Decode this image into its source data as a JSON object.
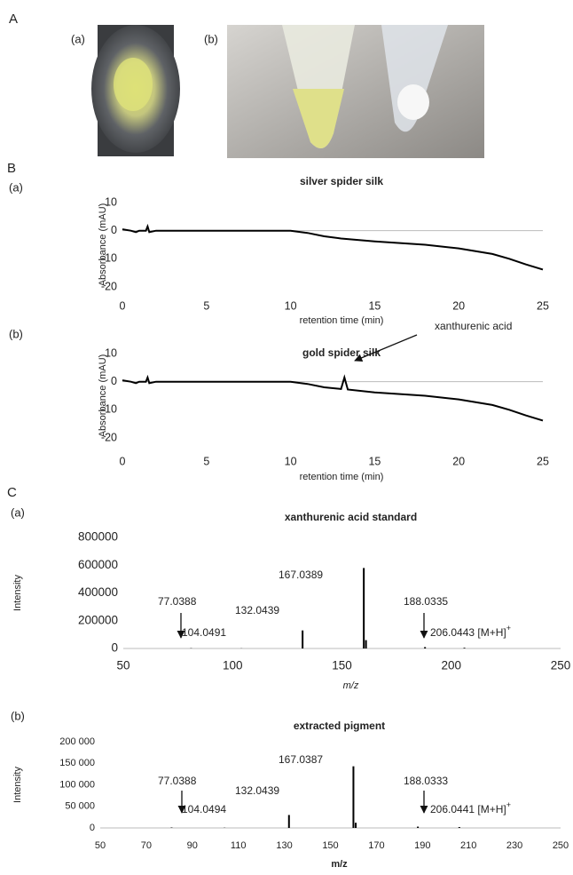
{
  "panel_labels": [
    "A",
    "(a)",
    "(b)",
    "B",
    "(a)",
    "(b)",
    "C",
    "(a)",
    "(b)"
  ],
  "chart_data": [
    {
      "type": "line",
      "title": "silver spider silk",
      "y_label": "Absorbance (mAU)",
      "x_label": "retention time (min)",
      "x": [
        0,
        0.5,
        0.8,
        1.0,
        1.4,
        1.5,
        1.6,
        2,
        5,
        10,
        11,
        12,
        13,
        15,
        18,
        20,
        22,
        23,
        24,
        25
      ],
      "y": [
        0.5,
        0,
        -0.5,
        0,
        0,
        1.5,
        -0.5,
        0,
        0,
        0,
        -0.8,
        -2,
        -2.8,
        -3.8,
        -5,
        -6.3,
        -8.3,
        -10,
        -12,
        -13.8
      ],
      "color": "#000000",
      "xlim": [
        0,
        25
      ],
      "ylim": [
        -20,
        10
      ],
      "xticks": [
        0,
        5,
        10,
        15,
        20,
        25
      ],
      "yticks": [
        -20,
        -10,
        0,
        10
      ],
      "grid": false
    },
    {
      "type": "line",
      "title": "gold spider silk",
      "y_label": "Absorbance (mAU)",
      "x_label": "retention time (min)",
      "x": [
        0,
        0.5,
        0.8,
        1.0,
        1.4,
        1.5,
        1.6,
        2,
        5,
        10,
        11,
        12,
        13,
        13.2,
        13.4,
        15,
        18,
        20,
        22,
        23,
        24,
        25
      ],
      "y": [
        0.5,
        0,
        -0.5,
        0,
        0,
        1.5,
        -0.5,
        0,
        0,
        0,
        -0.8,
        -2,
        -2.6,
        1.5,
        -2.8,
        -3.8,
        -5,
        -6.3,
        -8.3,
        -10,
        -12,
        -13.8
      ],
      "color": "#000000",
      "xlim": [
        0,
        25
      ],
      "ylim": [
        -20,
        10
      ],
      "xticks": [
        0,
        5,
        10,
        15,
        20,
        25
      ],
      "yticks": [
        -20,
        -10,
        0,
        10
      ],
      "grid": false,
      "annotations": [
        {
          "text": "xanthurenic acid"
        }
      ]
    },
    {
      "type": "stem",
      "title": "xanthurenic acid standard",
      "y_label": "Intensity",
      "x_label": "m/z",
      "x": [
        81,
        104,
        132,
        160,
        161,
        188,
        206
      ],
      "values": [
        2000,
        1000,
        130000,
        580000,
        60000,
        10000,
        5000
      ],
      "color": "#000000",
      "xlim": [
        50,
        250
      ],
      "ylim": [
        0,
        800000
      ],
      "xticks": [
        50,
        100,
        150,
        200,
        250
      ],
      "yticks": [
        0,
        200000,
        400000,
        600000,
        800000
      ],
      "grid": false,
      "annotations": [
        {
          "text": "167.0389"
        },
        {
          "text": "132.0439"
        },
        {
          "text": "104.0491"
        },
        {
          "text": "77.0388"
        },
        {
          "text": "188.0335"
        },
        {
          "text": "206.0443 [M+H]",
          "sup": "+"
        }
      ]
    },
    {
      "type": "stem",
      "title": "extracted pigment",
      "y_label": "Intensity",
      "x_label": "m/z",
      "x": [
        81,
        104,
        132,
        160,
        161,
        188,
        206
      ],
      "values": [
        1000,
        500,
        30000,
        143000,
        12000,
        3000,
        2000
      ],
      "color": "#000000",
      "xlim": [
        50,
        250
      ],
      "ylim": [
        0,
        200000
      ],
      "xticks": [
        50,
        70,
        90,
        110,
        130,
        150,
        170,
        190,
        210,
        230,
        250
      ],
      "yticks": [
        0,
        {
          "value": 50000,
          "label": "50 000"
        },
        {
          "value": 100000,
          "label": "100 000"
        },
        {
          "value": 150000,
          "label": "150 000"
        },
        {
          "value": 200000,
          "label": "200 000"
        }
      ],
      "grid": false,
      "annotations": [
        {
          "text": "167.0387"
        },
        {
          "text": "132.0439"
        },
        {
          "text": "104.0494"
        },
        {
          "text": "77.0388"
        },
        {
          "text": "188.0333"
        },
        {
          "text": "206.0441 [M+H]",
          "sup": "+"
        }
      ]
    }
  ]
}
